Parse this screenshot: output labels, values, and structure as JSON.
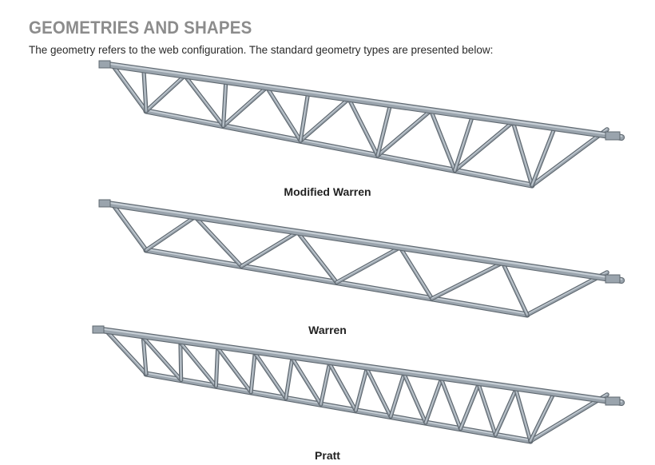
{
  "heading": "GEOMETRIES AND SHAPES",
  "intro": "The geometry refers to the web configuration. The standard geometry types are presented below:",
  "colors": {
    "heading": "#8c8c8c",
    "steel_light": "#c7cfd6",
    "steel_mid": "#9aa4ad",
    "steel_dark": "#5f6870"
  },
  "trusses": [
    {
      "name": "Modified Warren",
      "web_pattern": "modified-warren",
      "diagonal_pairs": 5
    },
    {
      "name": "Warren",
      "web_pattern": "warren",
      "diagonal_pairs": 4
    },
    {
      "name": "Pratt",
      "web_pattern": "pratt",
      "panels": 11
    }
  ]
}
